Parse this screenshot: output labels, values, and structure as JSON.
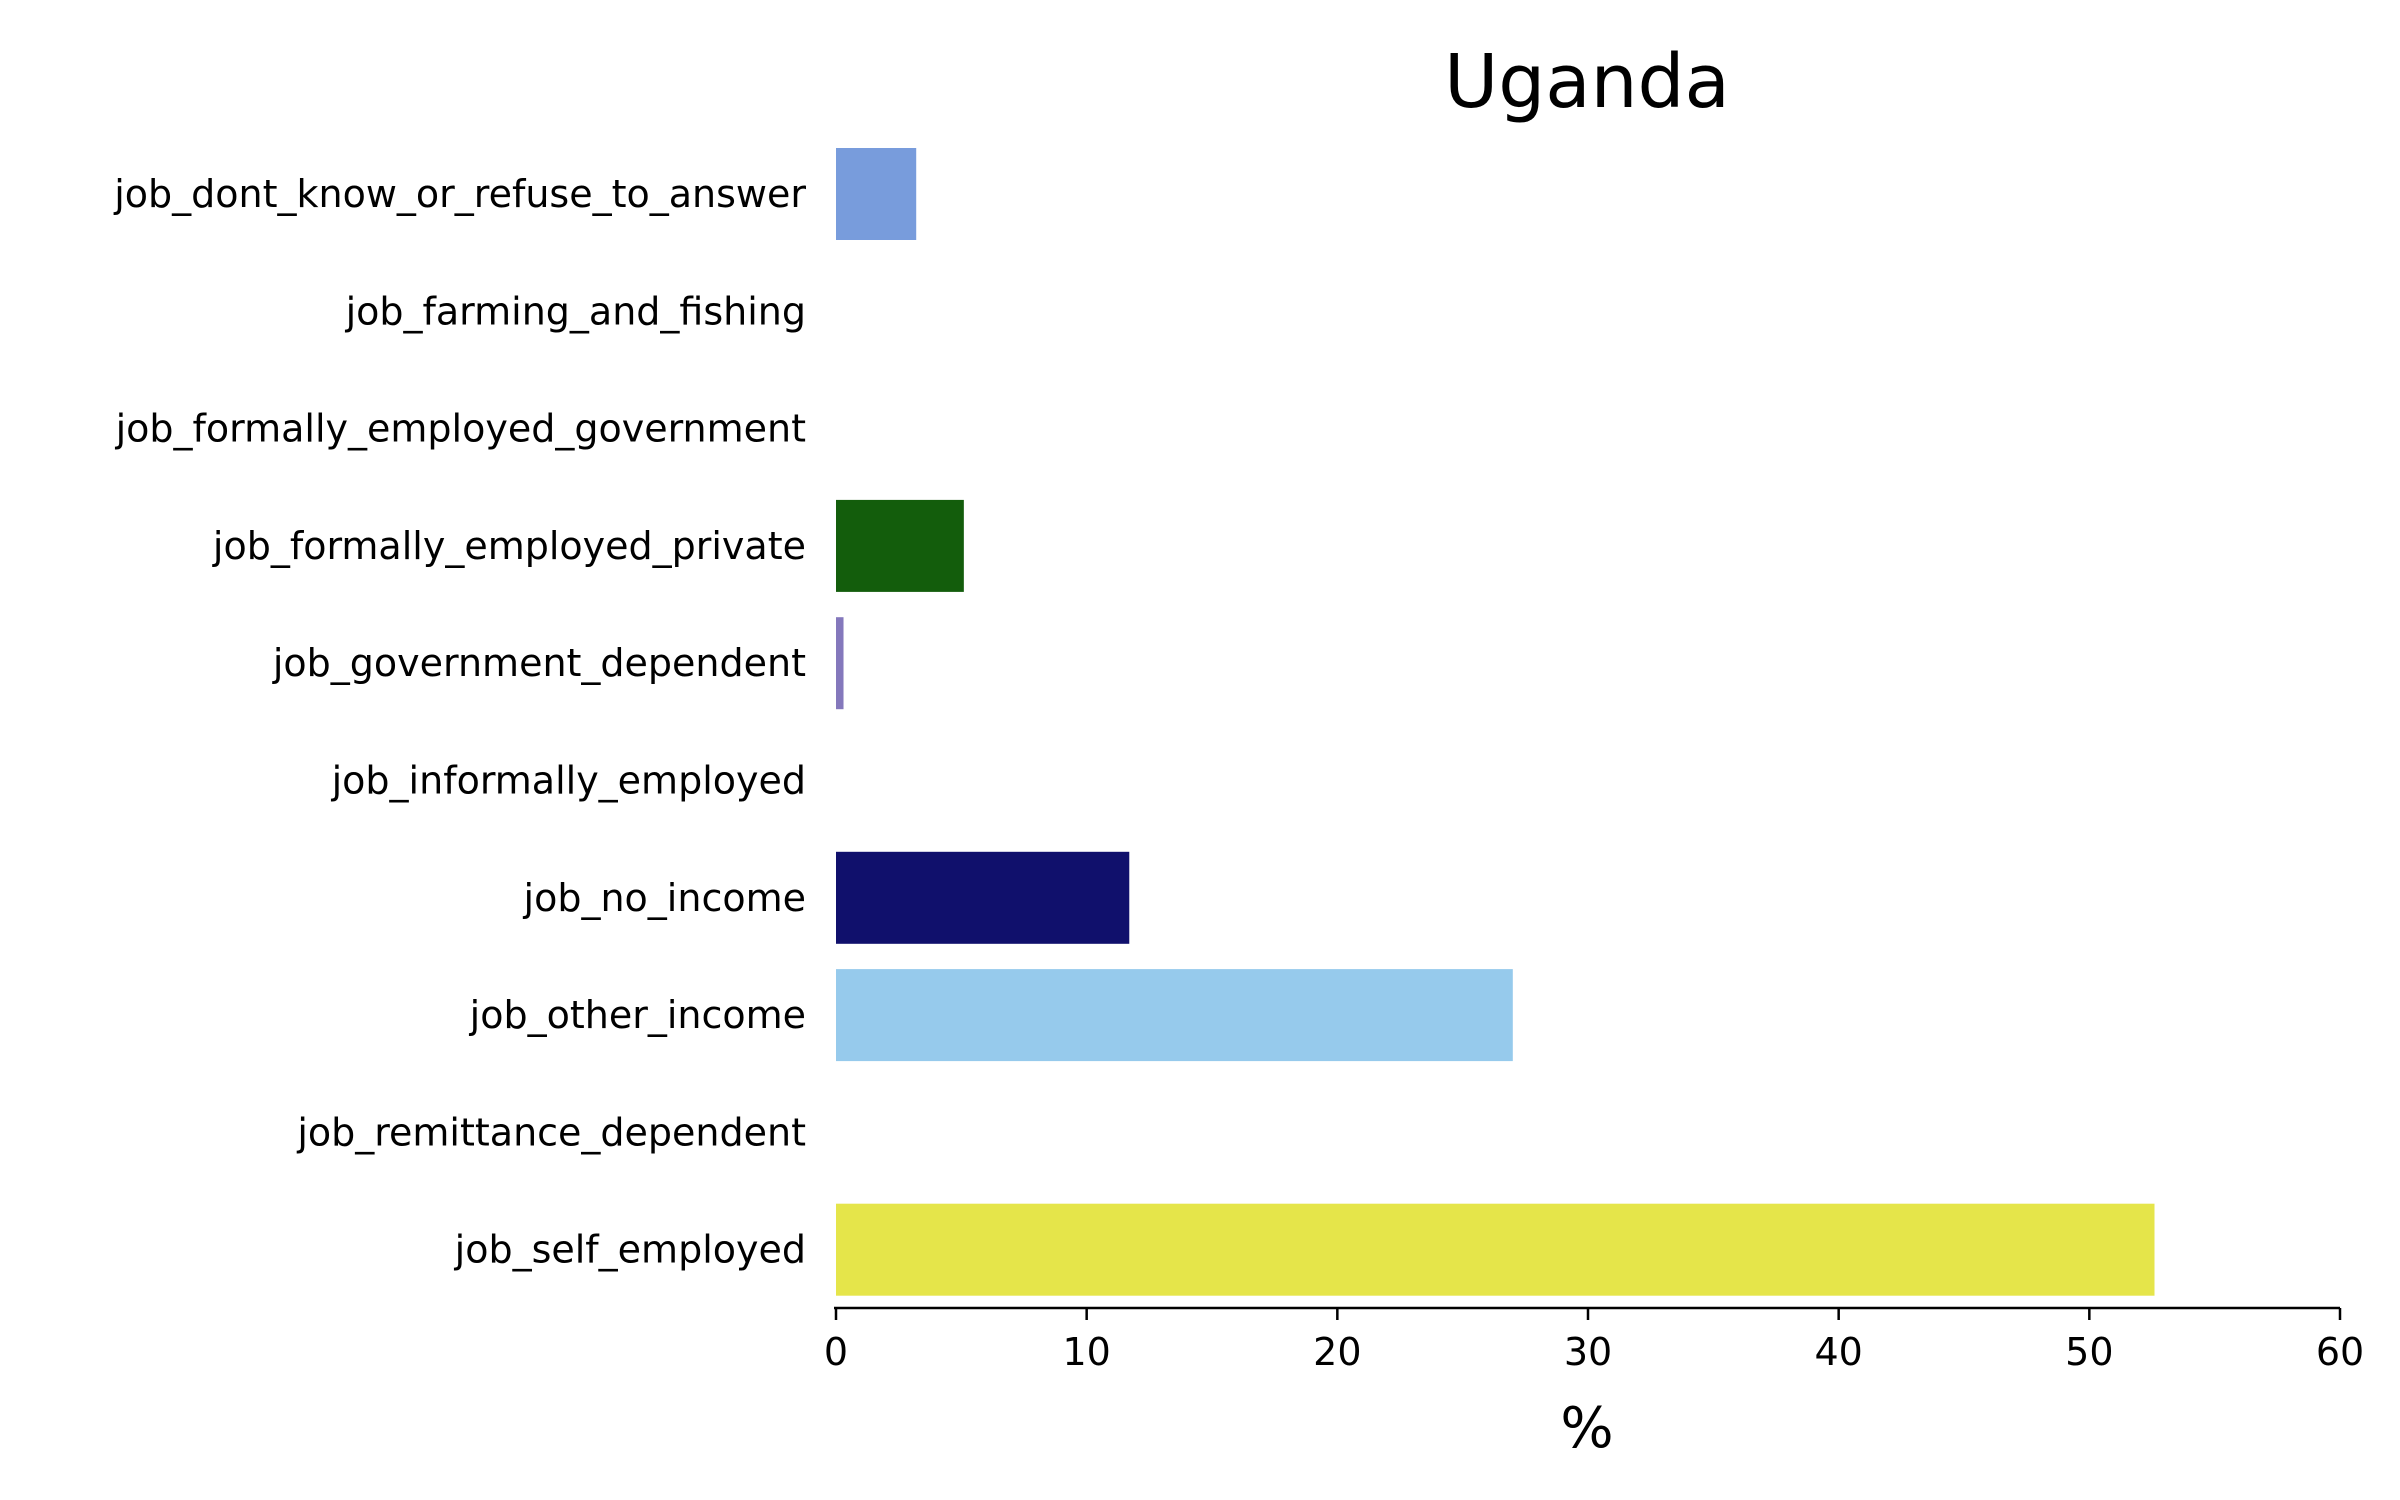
{
  "chart_data": {
    "type": "bar",
    "orientation": "horizontal",
    "title": "Uganda",
    "xlabel": "%",
    "ylabel": "",
    "xlim": [
      0,
      60
    ],
    "xticks": [
      "0",
      "10",
      "20",
      "30",
      "40",
      "50",
      "60"
    ],
    "grid": false,
    "legend": "none",
    "categories": [
      "job_dont_know_or_refuse_to_answer",
      "job_farming_and_fishing",
      "job_formally_employed_government",
      "job_formally_employed_private",
      "job_government_dependent",
      "job_informally_employed",
      "job_no_income",
      "job_other_income",
      "job_remittance_dependent",
      "job_self_employed"
    ],
    "values": [
      3.2,
      0,
      0,
      5.1,
      0.3,
      0,
      11.7,
      27.0,
      0,
      52.6
    ],
    "colors": [
      "#789cdc",
      "#ffffff",
      "#ffffff",
      "#135d0c",
      "#8478bc",
      "#ffffff",
      "#10106c",
      "#96caec",
      "#ffffff",
      "#e5e54a"
    ]
  }
}
